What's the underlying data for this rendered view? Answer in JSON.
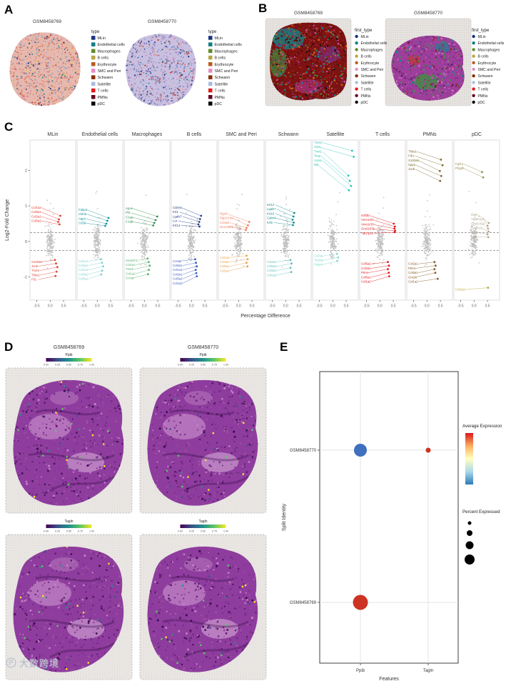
{
  "panels": {
    "A": "A",
    "B": "B",
    "C": "C",
    "D": "D",
    "E": "E"
  },
  "cell_types": {
    "labels": [
      "MLin",
      "Endothelial cells",
      "Macrophages",
      "B cells",
      "Erythrocyte",
      "SMC and Peri",
      "Schwann",
      "Satellite",
      "T cells",
      "PMNs",
      "pDC"
    ],
    "colors": [
      "#16337d",
      "#0e7f86",
      "#5f8c2a",
      "#b5a642",
      "#b85c1e",
      "#e78ac3",
      "#8c2d04",
      "#a6bddb",
      "#e31a1c",
      "#67001f",
      "#000000"
    ]
  },
  "panel_a": {
    "legend_title": "type",
    "plots": [
      {
        "title": "GSM8458769"
      },
      {
        "title": "GSM8458770"
      }
    ]
  },
  "panel_b": {
    "legend_title": "first_type",
    "plots": [
      {
        "title": "GSM8458769"
      },
      {
        "title": "GSM8458770"
      }
    ]
  },
  "panel_d": {
    "titles": [
      "GSM8458769",
      "GSM8458770"
    ],
    "features": [
      "Ppib",
      "Tagln"
    ],
    "colorbar_ticks": [
      "0.00",
      "0.25",
      "0.50",
      "0.75",
      "1.00"
    ],
    "viridis": [
      "#440154",
      "#3b528b",
      "#21918c",
      "#5ec962",
      "#fde725"
    ]
  },
  "watermark": {
    "text": "大数跨境"
  },
  "chart_data": [
    {
      "id": "panel_c",
      "type": "scatter",
      "xlabel": "Percentage Difference",
      "ylabel": "Log2-Fold Change",
      "xticks": [
        "-0.5",
        "0.0",
        "0.5"
      ],
      "xtick_values": [
        -0.5,
        0.0,
        0.5
      ],
      "yticks": [
        "2",
        "1",
        "0",
        "-1"
      ],
      "ytick_values": [
        2,
        1,
        0,
        -1
      ],
      "xlim": [
        -0.75,
        0.95
      ],
      "ylim": [
        -1.65,
        2.85
      ],
      "thresholds": [
        0.25,
        -0.25
      ],
      "facets": [
        {
          "name": "MLin",
          "up": "#e03c31",
          "down": "#e0463a",
          "genes": [
            [
              "Col1a2",
              0.38,
              0.72,
              "up"
            ],
            [
              "Col5a1",
              0.33,
              0.62,
              "up"
            ],
            [
              "Col2a1",
              0.3,
              0.55,
              "up"
            ],
            [
              "Col5a2",
              0.35,
              0.48,
              "up"
            ],
            [
              "S100a8",
              0.18,
              -0.52,
              "down"
            ],
            [
              "Junb",
              0.22,
              -0.62,
              "down"
            ],
            [
              "Tnnt3",
              0.27,
              -0.72,
              "down"
            ],
            [
              "Thbs1",
              0.24,
              -0.85,
              "down"
            ],
            [
              "Flt1",
              0.2,
              -0.97,
              "down"
            ]
          ]
        },
        {
          "name": "Endothelial cells",
          "up": "#12939a",
          "down": "#7fd0d4",
          "genes": [
            [
              "Fabp4",
              0.42,
              0.66,
              "up"
            ],
            [
              "Cldn5",
              0.38,
              0.58,
              "up"
            ],
            [
              "Aqp1",
              0.34,
              0.5,
              "up"
            ],
            [
              "Cd36",
              0.3,
              0.44,
              "up"
            ],
            [
              "Col1a1",
              0.14,
              -0.5,
              "down"
            ],
            [
              "Col3a1",
              0.18,
              -0.6,
              "down"
            ],
            [
              "Col1a2",
              0.22,
              -0.7,
              "down"
            ],
            [
              "Col5a2",
              0.18,
              -0.82,
              "down"
            ],
            [
              "Col5a1",
              0.15,
              -0.93,
              "down"
            ]
          ]
        },
        {
          "name": "Macrophages",
          "up": "#2f8f4e",
          "down": "#58b06e",
          "genes": [
            [
              "Apoe",
              0.48,
              0.7,
              "up"
            ],
            [
              "Pf4",
              0.42,
              0.6,
              "up"
            ],
            [
              "C1qa",
              0.37,
              0.52,
              "up"
            ],
            [
              "C1qb",
              0.33,
              0.45,
              "up"
            ],
            [
              "Serpinh1",
              0.12,
              -0.48,
              "down"
            ],
            [
              "Col1a1",
              0.16,
              -0.58,
              "down"
            ],
            [
              "Tnnt3",
              0.2,
              -0.68,
              "down"
            ],
            [
              "Col1a2",
              0.17,
              -0.8,
              "down"
            ],
            [
              "Comp",
              0.14,
              -0.92,
              "down"
            ]
          ]
        },
        {
          "name": "B cells",
          "up": "#27408b",
          "down": "#3b5bc0",
          "genes": [
            [
              "Calm4",
              0.36,
              0.72,
              "up"
            ],
            [
              "Krt1",
              0.32,
              0.63,
              "up"
            ],
            [
              "Lgals7",
              0.29,
              0.55,
              "up"
            ],
            [
              "Lor",
              0.26,
              0.48,
              "up"
            ],
            [
              "Krt14",
              0.3,
              0.42,
              "up"
            ],
            [
              "Comp",
              0.14,
              -0.5,
              "down"
            ],
            [
              "Col5a1",
              0.17,
              -0.6,
              "down"
            ],
            [
              "Col1a1",
              0.2,
              -0.7,
              "down"
            ],
            [
              "Col2a1",
              0.16,
              -0.8,
              "down"
            ],
            [
              "Col5a2",
              0.18,
              -0.89,
              "down"
            ],
            [
              "Col1a2",
              0.2,
              -0.98,
              "down"
            ]
          ]
        },
        {
          "name": "SMC and Peri",
          "up": "#f4795b",
          "down": "#e8a24f",
          "genes": [
            [
              "Rgs5",
              0.4,
              0.55,
              "up"
            ],
            [
              "Ppp1r14a",
              0.35,
              0.45,
              "up"
            ],
            [
              "Col4a1",
              0.3,
              0.38,
              "up"
            ],
            [
              "Gm13889",
              0.27,
              0.32,
              "up"
            ],
            [
              "Col1a1",
              0.3,
              -0.4,
              "down"
            ],
            [
              "Col3a1",
              0.34,
              -0.5,
              "down"
            ],
            [
              "Col5a1",
              0.3,
              -0.6,
              "down"
            ],
            [
              "Col1a2",
              0.33,
              -0.7,
              "down"
            ]
          ]
        },
        {
          "name": "Schwann",
          "up": "#0f8b8d",
          "down": "#63bfc1",
          "genes": [
            [
              "Krt14",
              0.32,
              0.8,
              "up"
            ],
            [
              "Lgals7",
              0.29,
              0.7,
              "up"
            ],
            [
              "Krt10",
              0.26,
              0.61,
              "up"
            ],
            [
              "Calm4",
              0.3,
              0.53,
              "up"
            ],
            [
              "Krt5",
              0.27,
              0.46,
              "up"
            ],
            [
              "Col2a1",
              0.18,
              -0.52,
              "down"
            ],
            [
              "Col5a2",
              0.22,
              -0.62,
              "down"
            ],
            [
              "Col5a1",
              0.18,
              -0.74,
              "down"
            ],
            [
              "Col1a2",
              0.21,
              -0.86,
              "down"
            ]
          ]
        },
        {
          "name": "Satellite",
          "up": "#2ec4b6",
          "down": "#7fd8cf",
          "genes": [
            [
              "Tnnt3",
              0.72,
              2.55,
              "up"
            ],
            [
              "Ckm",
              0.78,
              2.38,
              "up"
            ],
            [
              "Tnnt1",
              0.58,
              1.85,
              "up"
            ],
            [
              "Tcap",
              0.63,
              1.7,
              "up"
            ],
            [
              "Acta1",
              0.68,
              1.56,
              "up"
            ],
            [
              "Mb",
              0.6,
              1.44,
              "up"
            ],
            [
              "Col3a1",
              0.16,
              -0.35,
              "down"
            ],
            [
              "Tyrobp",
              0.2,
              -0.45,
              "down"
            ],
            [
              "Fabp4",
              0.17,
              -0.55,
              "down"
            ]
          ]
        },
        {
          "name": "T cells",
          "up": "#e31a1c",
          "down": "#e31a1c",
          "genes": [
            [
              "H3f3b",
              0.52,
              0.5,
              "up"
            ],
            [
              "Vmn1r87",
              0.56,
              0.42,
              "up"
            ],
            [
              "Vmn1r37",
              0.54,
              0.36,
              "up"
            ],
            [
              "Gm21671",
              0.57,
              0.3,
              "up"
            ],
            [
              "Tpt1-ps3",
              0.55,
              0.26,
              "up"
            ],
            [
              "Col5a2",
              0.3,
              -0.58,
              "down"
            ],
            [
              "Col2a1",
              0.34,
              -0.68,
              "down"
            ],
            [
              "Ptms",
              0.3,
              -0.78,
              "down"
            ],
            [
              "Col5a1",
              0.33,
              -0.88,
              "down"
            ],
            [
              "Col1a2",
              0.35,
              -0.98,
              "down"
            ]
          ]
        },
        {
          "name": "PMNs",
          "up": "#7d6a2e",
          "down": "#8a5a2a",
          "genes": [
            [
              "Thbs1",
              0.52,
              2.3,
              "up"
            ],
            [
              "Fth1",
              0.58,
              2.14,
              "up"
            ],
            [
              "S100a9",
              0.48,
              1.98,
              "up"
            ],
            [
              "Spp1",
              0.53,
              1.84,
              "up"
            ],
            [
              "Junb",
              0.49,
              1.7,
              "up"
            ],
            [
              "Col2a1",
              0.28,
              -0.58,
              "down"
            ],
            [
              "Ptms",
              0.32,
              -0.68,
              "down"
            ],
            [
              "Col5a1",
              0.28,
              -0.78,
              "down"
            ],
            [
              "Gm2a",
              0.31,
              -0.88,
              "down"
            ],
            [
              "Col1a2",
              0.4,
              -1.05,
              "down"
            ]
          ]
        },
        {
          "name": "pDC",
          "up": "#9a8c4f",
          "down": "#b5a642",
          "mid": "#b3a98c",
          "genes": [
            [
              "Fgf13",
              0.3,
              1.95,
              "up"
            ],
            [
              "Phgdh",
              0.34,
              1.8,
              "up"
            ],
            [
              "Rian",
              0.55,
              0.52,
              "mid"
            ],
            [
              "Atp6v1g3",
              0.5,
              0.44,
              "mid"
            ],
            [
              "Gm42418",
              0.52,
              0.36,
              "mid"
            ],
            [
              "Smim13",
              0.54,
              0.28,
              "mid"
            ],
            [
              "Gpx3",
              0.5,
              0.2,
              "mid"
            ],
            [
              "Gsn",
              0.53,
              0.12,
              "mid"
            ],
            [
              "Col1a2",
              0.52,
              -1.3,
              "down"
            ]
          ]
        }
      ]
    },
    {
      "id": "panel_e",
      "type": "scatter",
      "subtype": "dotplot",
      "xlabel": "Features",
      "ylabel": "Split Identity",
      "x_categories": [
        "Ppib",
        "Tagln"
      ],
      "y_categories": [
        "GSM8458770",
        "GSM8458769"
      ],
      "dots": [
        {
          "feature": "Ppib",
          "identity": "GSM8458770",
          "color": "#3f6fbf",
          "radius": 9,
          "avg_expression": "low",
          "percent_expressed": "large"
        },
        {
          "feature": "Tagln",
          "identity": "GSM8458770",
          "color": "#cc3322",
          "radius": 3.5,
          "avg_expression": "high",
          "percent_expressed": "small"
        },
        {
          "feature": "Ppib",
          "identity": "GSM8458769",
          "color": "#cc3322",
          "radius": 10.5,
          "avg_expression": "high",
          "percent_expressed": "large"
        }
      ],
      "legends": {
        "avg_title": "Average Expression",
        "pct_title": "Percent Expressed",
        "avg_gradient_top_to_bottom": [
          "#d7191c",
          "#fdae61",
          "#ffffbf",
          "#abd9e9",
          "#2c7bb6"
        ],
        "pct_sizes": [
          2.5,
          4,
          5.5,
          7
        ]
      }
    }
  ]
}
